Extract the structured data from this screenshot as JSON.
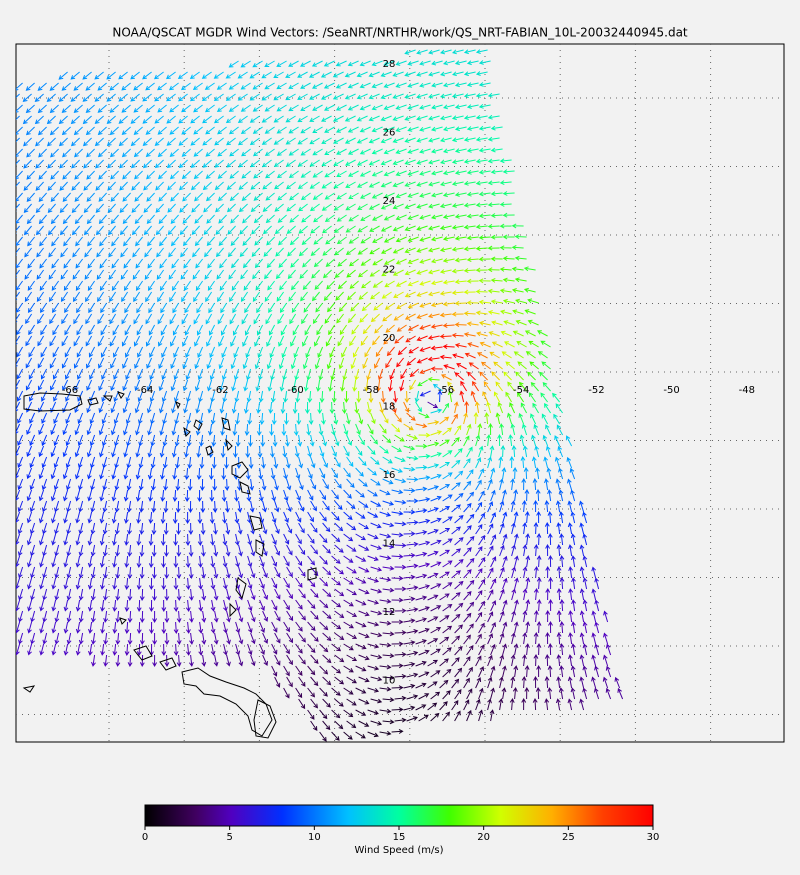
{
  "map": {
    "title": "NOAA/QSCAT MGDR Wind Vectors: /SeaNRT/NRTHR/work/QS_NRT-FABIAN_10L-20032440945.dat",
    "longitude_labels": [
      "-66",
      "-64",
      "-62",
      "-60",
      "-58",
      "-56",
      "-54",
      "-52",
      "-50",
      "-48"
    ],
    "latitude_labels": [
      "28",
      "26",
      "24",
      "22",
      "20",
      "18",
      "16",
      "14",
      "12",
      "10"
    ],
    "colorbar": {
      "label": "Wind Speed (m/s)",
      "lim": [
        0,
        30
      ],
      "ticks": [
        0,
        5,
        10,
        15,
        20,
        25,
        30
      ]
    }
  }
}
